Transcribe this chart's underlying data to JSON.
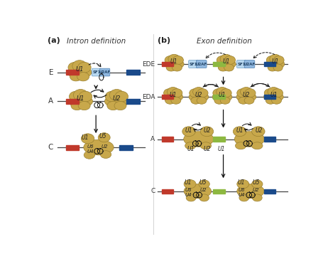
{
  "bg_color": "#ffffff",
  "blob_color": "#c8a84b",
  "blob_edge": "#9a8030",
  "red_color": "#c0392b",
  "blue_color": "#1a4a8a",
  "green_color": "#8db840",
  "sf1_color": "#b8d8f0",
  "u2af_color": "#90b8e0",
  "line_color": "#444444",
  "arrow_color": "#111111",
  "title_left": "Intron definition",
  "title_right": "Exon definition",
  "panel_a": "(a)",
  "panel_b": "(b)"
}
